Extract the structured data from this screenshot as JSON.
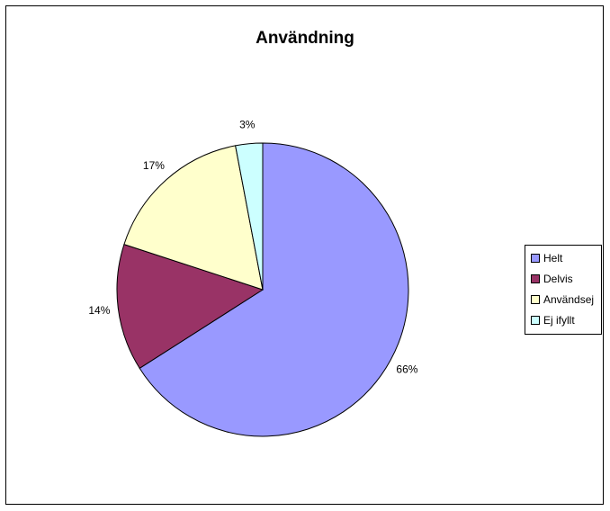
{
  "chart_data": {
    "type": "pie",
    "title": "Användning",
    "categories": [
      "Helt",
      "Delvis",
      "Användsej",
      "Ej ifyllt"
    ],
    "values": [
      66,
      14,
      17,
      3
    ],
    "labels": [
      "66%",
      "14%",
      "17%",
      "3%"
    ],
    "colors": [
      "#9999FF",
      "#993366",
      "#FFFFCC",
      "#CCFFFF"
    ],
    "legend_position": "right"
  },
  "legend": {
    "items": [
      {
        "label": "Helt",
        "color": "#9999FF"
      },
      {
        "label": "Delvis",
        "color": "#993366"
      },
      {
        "label": "Användsej",
        "color": "#FFFFCC"
      },
      {
        "label": "Ej ifyllt",
        "color": "#CCFFFF"
      }
    ]
  }
}
